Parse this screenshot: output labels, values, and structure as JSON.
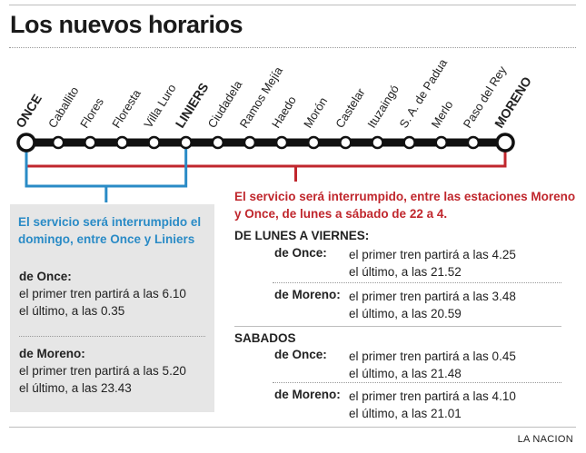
{
  "title": "Los nuevos horarios",
  "colors": {
    "line": "#111111",
    "weekday_bracket": "#c0272d",
    "sunday_bracket": "#2a8bc6",
    "notice_red": "#c0272d",
    "notice_blue": "#2a8bc6"
  },
  "stations": [
    {
      "name": "ONCE",
      "terminal": true
    },
    {
      "name": "Caballito"
    },
    {
      "name": "Flores"
    },
    {
      "name": "Floresta"
    },
    {
      "name": "Villa Luro"
    },
    {
      "name": "LINIERS",
      "terminal": true
    },
    {
      "name": "Ciudadela"
    },
    {
      "name": "Ramos Mejía"
    },
    {
      "name": "Haedo"
    },
    {
      "name": "Morón"
    },
    {
      "name": "Castelar"
    },
    {
      "name": "Ituzaingó"
    },
    {
      "name": "S. A. de Padua"
    },
    {
      "name": "Merlo"
    },
    {
      "name": "Paso del Rey"
    },
    {
      "name": "MORENO",
      "terminal": true
    }
  ],
  "sunday": {
    "notice": "El servicio será interrumpido el domingo, entre Once y Liniers",
    "from_once": {
      "label": "de Once:",
      "first": "el primer tren partirá a las 6.10",
      "last": "el último, a las 0.35"
    },
    "from_moreno": {
      "label": "de Moreno:",
      "first": "el primer tren partirá a las 5.20",
      "last": "el último, a las 23.43"
    }
  },
  "weekday": {
    "notice": "El servicio será interrumpido, entre las estaciones Moreno y Once, de lunes a sábado de 22 a 4.",
    "mon_fri": {
      "heading": "DE LUNES A VIERNES:",
      "from_once": {
        "label": "de Once:",
        "first": "el primer tren partirá a las 4.25",
        "last": "el último, a las 21.52"
      },
      "from_moreno": {
        "label": "de Moreno:",
        "first": "el primer tren partirá a las 3.48",
        "last": "el último, a las 20.59"
      }
    },
    "saturday": {
      "heading": "SABADOS",
      "from_once": {
        "label": "de Once:",
        "first": "el primer tren partirá a las 0.45",
        "last": "el último, a las 21.48"
      },
      "from_moreno": {
        "label": "de Moreno:",
        "first": "el primer tren partirá a las 4.10",
        "last": "el último, a las 21.01"
      }
    }
  },
  "credit": "LA NACION"
}
